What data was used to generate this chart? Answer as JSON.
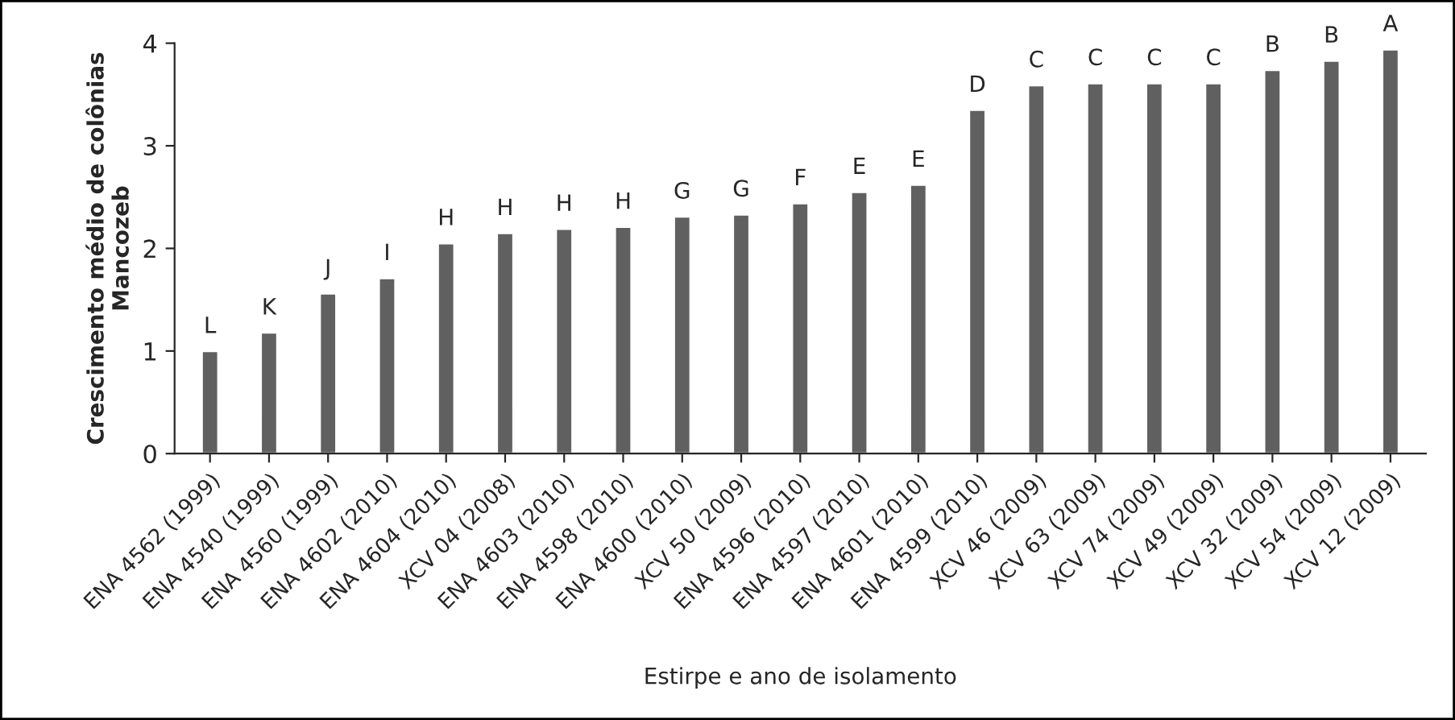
{
  "chart_data": {
    "type": "bar",
    "xlabel": "Estirpe e ano de isolamento",
    "ylabel": "Crescimento médio de colônias\nMancozeb",
    "categories": [
      "ENA 4562 (1999)",
      "ENA 4540 (1999)",
      "ENA 4560 (1999)",
      "ENA 4602 (2010)",
      "ENA 4604 (2010)",
      "XCV 04 (2008)",
      "ENA 4603 (2010)",
      "ENA 4598 (2010)",
      "ENA 4600 (2010)",
      "XCV 50 (2009)",
      "ENA 4596 (2010)",
      "ENA 4597 (2010)",
      "ENA 4601 (2010)",
      "ENA 4599 (2010)",
      "XCV 46 (2009)",
      "XCV 63 (2009)",
      "XCV 74 (2009)",
      "XCV 49 (2009)",
      "XCV 32 (2009)",
      "XCV 54 (2009)",
      "XCV 12 (2009)"
    ],
    "values": [
      1.0,
      1.18,
      1.56,
      1.71,
      2.05,
      2.15,
      2.19,
      2.21,
      2.31,
      2.33,
      2.44,
      2.55,
      2.62,
      3.35,
      3.59,
      3.61,
      3.61,
      3.61,
      3.74,
      3.83,
      3.94
    ],
    "value_labels": [
      "L",
      "K",
      "J",
      "I",
      "H",
      "H",
      "H",
      "H",
      "G",
      "G",
      "F",
      "E",
      "E",
      "D",
      "C",
      "C",
      "C",
      "C",
      "B",
      "B",
      "A"
    ],
    "color": "#606060",
    "ylim": [
      0,
      4
    ],
    "yticks": [
      0,
      1,
      2,
      3,
      4
    ],
    "grid": false,
    "legend": false
  }
}
